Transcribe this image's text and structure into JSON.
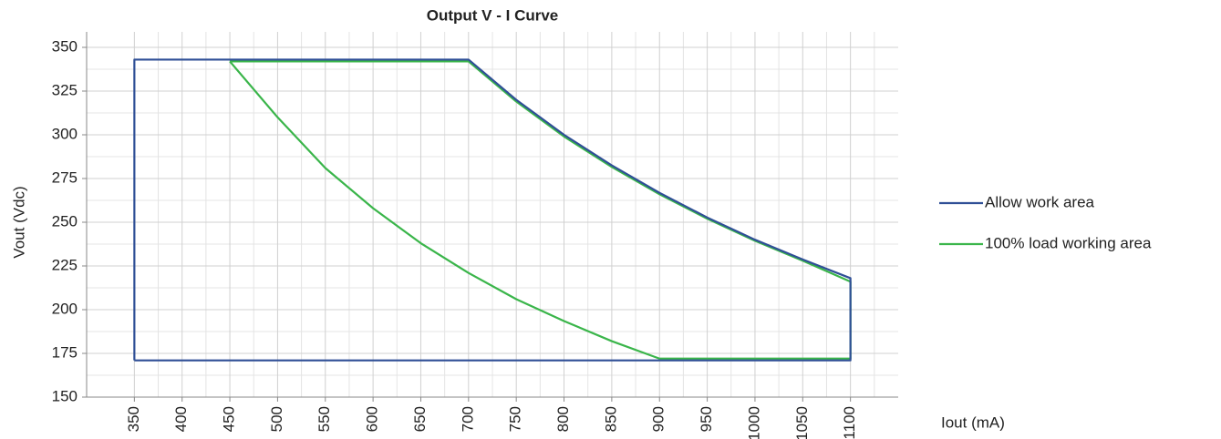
{
  "chart_data": {
    "type": "line",
    "title": "Output V - I Curve",
    "x_label": "Iout (mA)",
    "y_label": "Vout (Vdc)",
    "xlim": [
      300,
      1150
    ],
    "xticks": [
      350,
      400,
      450,
      500,
      550,
      600,
      650,
      700,
      750,
      800,
      850,
      900,
      950,
      1000,
      1050,
      1100
    ],
    "ylim": [
      150,
      350
    ],
    "yticks": [
      150,
      175,
      200,
      225,
      250,
      275,
      300,
      325,
      350
    ],
    "grid": true,
    "legend": "right",
    "series": [
      {
        "name": "Allow work area",
        "color": "#2f4f96",
        "x": [
          350,
          350,
          700,
          750,
          800,
          850,
          900,
          950,
          1000,
          1050,
          1100,
          1100,
          350
        ],
        "values": [
          171,
          343,
          343,
          320,
          300,
          282.5,
          266.8,
          252.7,
          240,
          228.7,
          218,
          171,
          171
        ]
      },
      {
        "name": "100% load working area",
        "color": "#3ab54a",
        "x": [
          450,
          700,
          750,
          800,
          850,
          900,
          950,
          1000,
          1050,
          1100,
          1100,
          900,
          850,
          800,
          750,
          700,
          650,
          600,
          550,
          500,
          450
        ],
        "values": [
          342,
          342,
          319,
          299,
          281.6,
          266,
          252,
          239.4,
          228,
          216,
          172,
          172,
          182,
          193.5,
          206,
          221,
          238,
          258,
          281,
          310,
          342
        ]
      }
    ]
  }
}
